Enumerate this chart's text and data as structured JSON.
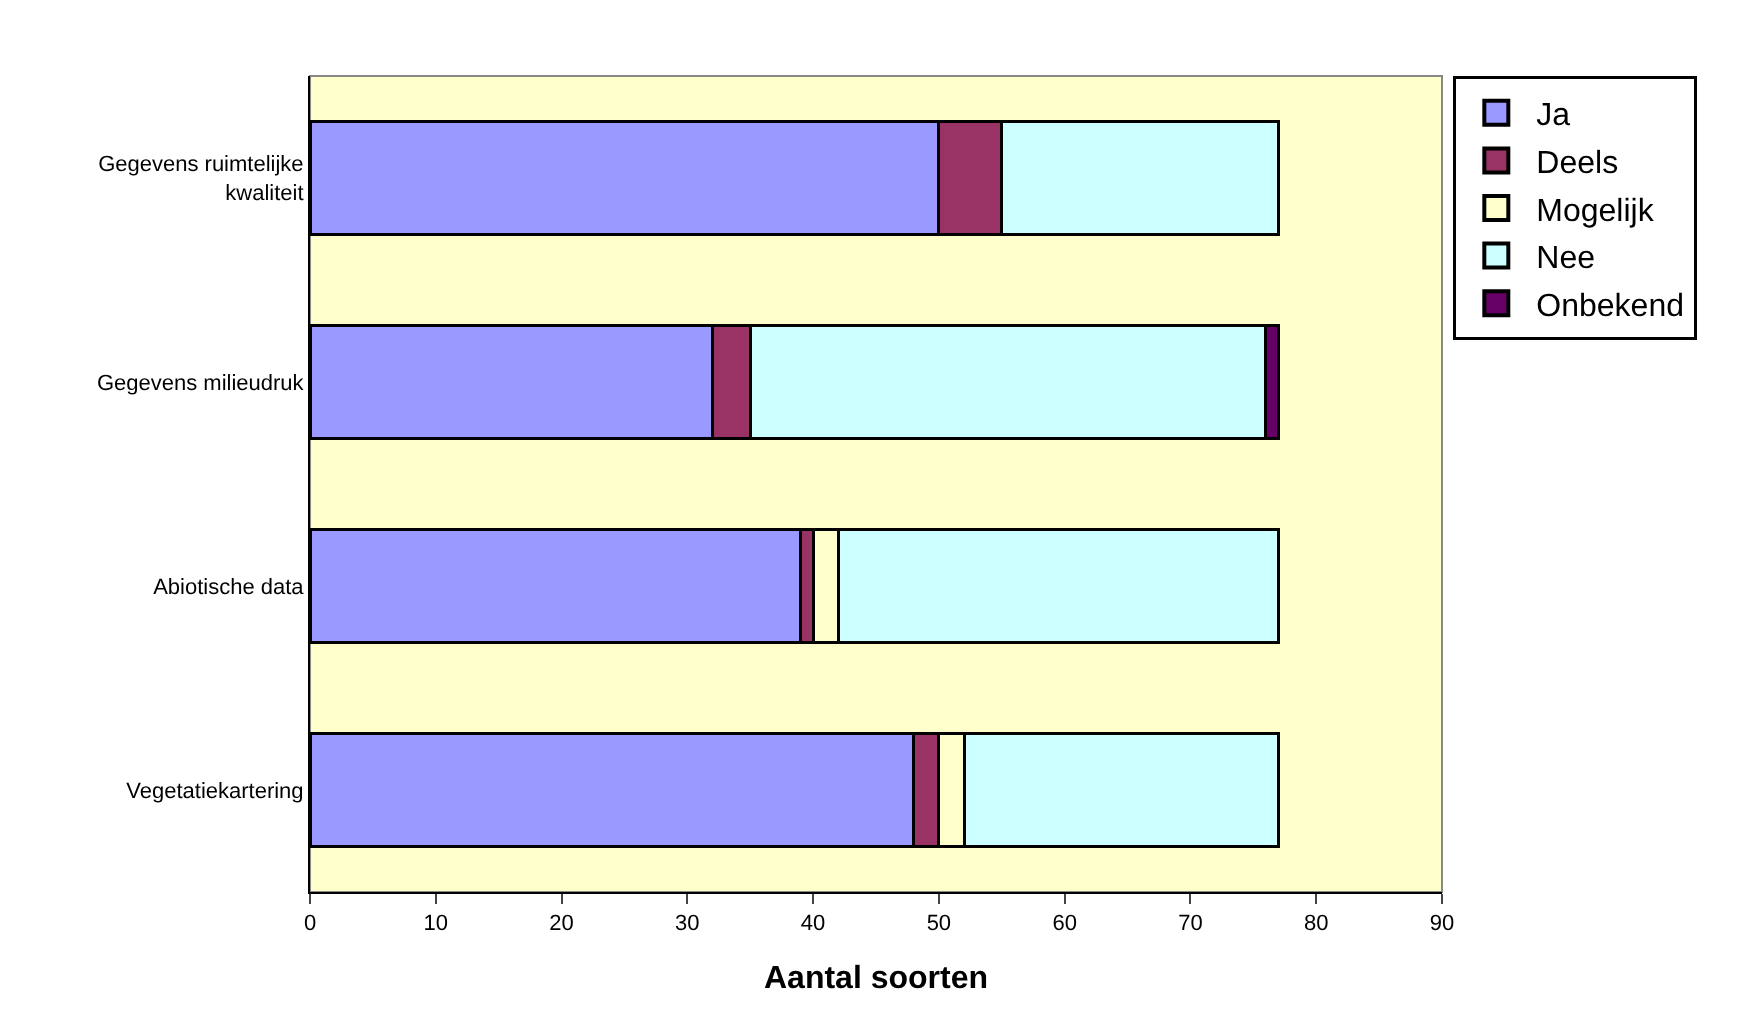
{
  "chart_data": {
    "type": "bar",
    "orientation": "horizontal",
    "stacked": true,
    "xlabel": "Aantal soorten",
    "categories": [
      "Gegevens ruimtelijke kwaliteit",
      "Gegevens milieudruk",
      "Abiotische data",
      "Vegetatiekartering"
    ],
    "series": [
      {
        "name": "Ja",
        "color": "#9999ff",
        "values": [
          50,
          32,
          39,
          48
        ]
      },
      {
        "name": "Deels",
        "color": "#993366",
        "values": [
          5,
          3,
          1,
          2
        ]
      },
      {
        "name": "Mogelijk",
        "color": "#ffffcc",
        "values": [
          null,
          null,
          2,
          2
        ]
      },
      {
        "name": "Nee",
        "color": "#ccffff",
        "values": [
          22,
          41,
          35,
          25
        ]
      },
      {
        "name": "Onbekend",
        "color": "#660066",
        "values": [
          null,
          1,
          null,
          null
        ]
      }
    ],
    "xlim": [
      0,
      90
    ],
    "xticks": [
      0,
      10,
      20,
      30,
      40,
      50,
      60,
      70,
      80,
      90
    ],
    "grid": false,
    "legend": "right"
  }
}
